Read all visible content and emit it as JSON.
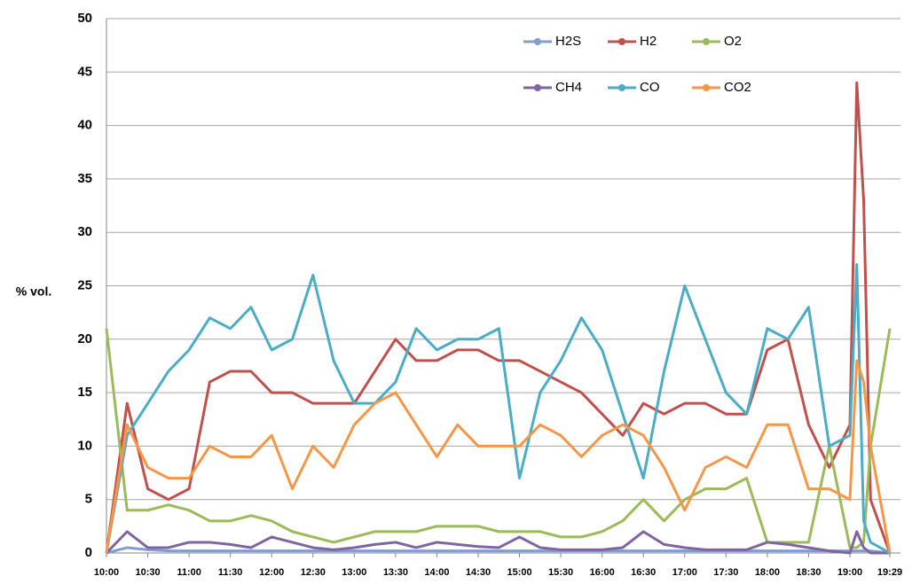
{
  "chart_data": {
    "type": "line",
    "y_label": "% vol.",
    "x": [
      "10:00",
      "10:15",
      "10:30",
      "10:45",
      "11:00",
      "11:15",
      "11:30",
      "11:45",
      "12:00",
      "12:15",
      "12:30",
      "12:45",
      "13:00",
      "13:15",
      "13:30",
      "13:45",
      "14:00",
      "14:15",
      "14:30",
      "14:45",
      "15:00",
      "15:15",
      "15:30",
      "15:45",
      "16:00",
      "16:15",
      "16:30",
      "16:45",
      "17:00",
      "17:15",
      "17:30",
      "17:45",
      "18:00",
      "18:15",
      "18:30",
      "18:45",
      "19:00",
      "19:05",
      "19:10",
      "19:15",
      "19:29"
    ],
    "xlim": [
      "10:00",
      "19:29"
    ],
    "xticks": [
      "10:00",
      "10:30",
      "11:00",
      "11:30",
      "12:00",
      "12:30",
      "13:00",
      "13:30",
      "14:00",
      "14:30",
      "15:00",
      "15:30",
      "16:00",
      "16:30",
      "17:00",
      "17:30",
      "18:00",
      "18:30",
      "19:00",
      "19:29"
    ],
    "ylim": [
      0,
      50
    ],
    "yticks": [
      0,
      5,
      10,
      15,
      20,
      25,
      30,
      35,
      40,
      45,
      50
    ],
    "grid": true,
    "legend": "top-right",
    "series": [
      {
        "name": "H2S",
        "color": "#7f9fd3",
        "values": [
          0,
          0.5,
          0.3,
          0.2,
          0.2,
          0.2,
          0.2,
          0.2,
          0.2,
          0.2,
          0.2,
          0.2,
          0.2,
          0.2,
          0.2,
          0.2,
          0.2,
          0.2,
          0.2,
          0.2,
          0.2,
          0.2,
          0.2,
          0.2,
          0.2,
          0.2,
          0.2,
          0.2,
          0.2,
          0.2,
          0.2,
          0.2,
          0.2,
          0.2,
          0.2,
          0.2,
          0.2,
          0.2,
          0.2,
          0.2,
          0
        ]
      },
      {
        "name": "H2",
        "color": "#c0504d",
        "values": [
          0,
          14,
          6,
          5,
          6,
          16,
          17,
          17,
          15,
          15,
          14,
          14,
          14,
          17,
          20,
          18,
          18,
          19,
          19,
          18,
          18,
          17,
          16,
          15,
          13,
          11,
          14,
          13,
          14,
          14,
          13,
          13,
          19,
          20,
          12,
          8,
          12,
          44,
          33,
          5,
          0
        ]
      },
      {
        "name": "O2",
        "color": "#9bbb59",
        "values": [
          21,
          4,
          4,
          4.5,
          4,
          3,
          3,
          3.5,
          3,
          2,
          1.5,
          1,
          1.5,
          2,
          2,
          2,
          2.5,
          2.5,
          2.5,
          2,
          2,
          2,
          1.5,
          1.5,
          2,
          3,
          5,
          3,
          5,
          6,
          6,
          7,
          1,
          1,
          1,
          10,
          0.5,
          0.5,
          1,
          10,
          21
        ]
      },
      {
        "name": "CH4",
        "color": "#8064a2",
        "values": [
          0,
          2,
          0.5,
          0.5,
          1,
          1,
          0.8,
          0.5,
          1.5,
          1,
          0.5,
          0.3,
          0.5,
          0.8,
          1,
          0.5,
          1,
          0.8,
          0.6,
          0.5,
          1.5,
          0.5,
          0.3,
          0.3,
          0.3,
          0.5,
          2,
          0.8,
          0.5,
          0.3,
          0.3,
          0.3,
          1,
          0.8,
          0.5,
          0.2,
          0,
          2,
          0.5,
          0,
          0
        ]
      },
      {
        "name": "CO",
        "color": "#4bacc6",
        "values": [
          0,
          11,
          14,
          17,
          19,
          22,
          21,
          23,
          19,
          20,
          26,
          18,
          14,
          14,
          16,
          21,
          19,
          20,
          20,
          21,
          7,
          15,
          18,
          22,
          19,
          13,
          7,
          17,
          25,
          20,
          15,
          13,
          21,
          20,
          23,
          10,
          11,
          27,
          3,
          1,
          0
        ]
      },
      {
        "name": "CO2",
        "color": "#f79646",
        "values": [
          0,
          12,
          8,
          7,
          7,
          10,
          9,
          9,
          11,
          6,
          10,
          8,
          12,
          14,
          15,
          12,
          9,
          12,
          10,
          10,
          10,
          12,
          11,
          9,
          11,
          12,
          11,
          8,
          4,
          8,
          9,
          8,
          12,
          12,
          6,
          6,
          5,
          18,
          16,
          10,
          0
        ]
      }
    ]
  }
}
